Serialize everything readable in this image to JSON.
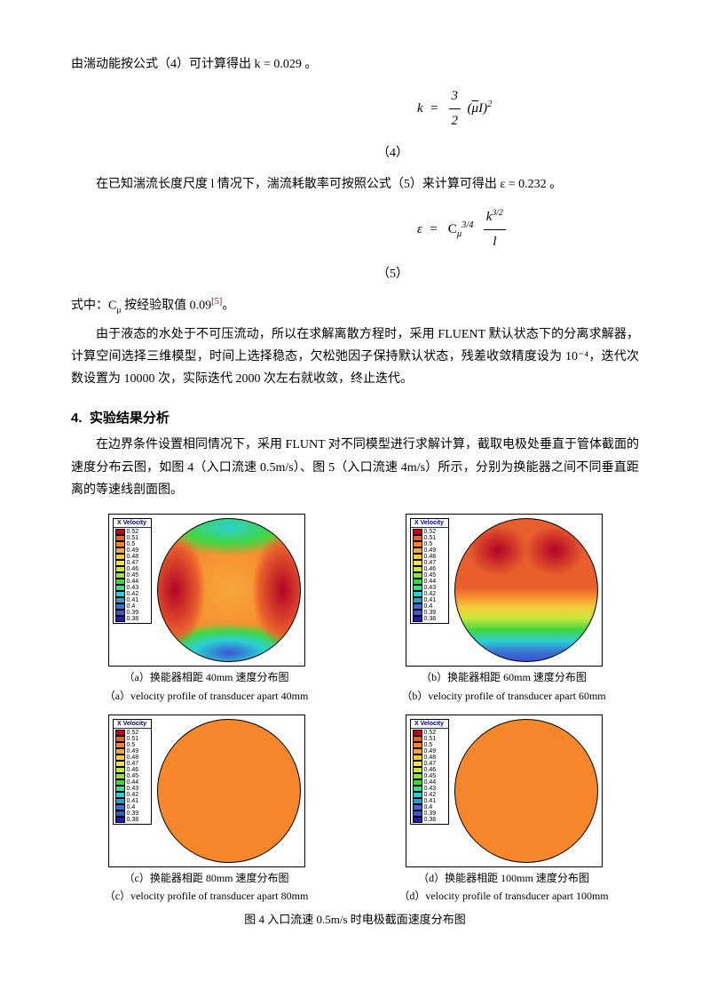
{
  "para1": "由湍动能按公式（4）可计算得出 k = 0.029 。",
  "eq4_label": "（4）",
  "para2": "在已知湍流长度尺度 l 情况下，湍流耗散率可按照公式（5）来计算可得出 ε = 0.232 。",
  "eq5_label": "（5）",
  "para3_prefix": "式中：C",
  "para3_sub": "μ",
  "para3_mid": " 按经验取值 0.09",
  "para3_ref": "[5]",
  "para3_suffix": "。",
  "para4": "由于液态的水处于不可压流动，所以在求解离散方程时，采用 FLUENT 默认状态下的分离求解器，计算空间选择三维模型，时间上选择稳态，欠松弛因子保持默认状态，残差收敛精度设为 10⁻⁴，迭代次数设置为 10000 次，实际迭代 2000 次左右就收敛，终止迭代。",
  "section_number": "4.",
  "section_title": "实验结果分析",
  "para5": "在边界条件设置相同情况下，采用 FLUNT 对不同模型进行求解计算，截取电极处垂直于管体截面的速度分布云图，如图 4（入口流速 0.5m/s）、图 5（入口流速 4m/s）所示，分别为换能器之间不同垂直距离的等速线剖面图。",
  "legend_title": "X Velocity",
  "legend_a": [
    "0.52",
    "0.51",
    "0.5",
    "0.49",
    "0.48",
    "0.47",
    "0.46",
    "0.45",
    "0.44",
    "0.43",
    "0.42",
    "0.41",
    "0.4",
    "0.39",
    "0.38"
  ],
  "legend_colors": [
    "#b40426",
    "#e85e2d",
    "#f6862c",
    "#f6a63b",
    "#f6cb3b",
    "#f6e03b",
    "#c6e63b",
    "#8ce63b",
    "#41d641",
    "#2be68f",
    "#2bcfd4",
    "#2b9dd3",
    "#3b6dd3",
    "#3b55d3",
    "#2020a0"
  ],
  "panels": {
    "a": {
      "cn": "（a）换能器相距 40mm 速度分布图",
      "en": "（a）velocity profile of transducer apart 40mm"
    },
    "b": {
      "cn": "（b）换能器相距 60mm 速度分布图",
      "en": "（b）velocity profile of transducer apart 60mm"
    },
    "c": {
      "cn": "（c）换能器相距 80mm 速度分布图",
      "en": "（c）velocity profile of transducer apart 80mm"
    },
    "d": {
      "cn": "（d）换能器相距 100mm 速度分布图",
      "en": "（d）velocity profile of transducer apart 100mm"
    }
  },
  "fig4_title": "图 4   入口流速 0.5m/s 时电极截面速度分布图",
  "eq4": {
    "coef_num": "3",
    "coef_den": "2",
    "term": "( μI )",
    "exp": "2",
    "lhs": "k"
  },
  "eq5": {
    "lhs": "ε",
    "coef": "C",
    "coef_sub": "μ",
    "coef_exp": "3/4",
    "num": "k",
    "num_exp": "3/2",
    "den": "l"
  }
}
